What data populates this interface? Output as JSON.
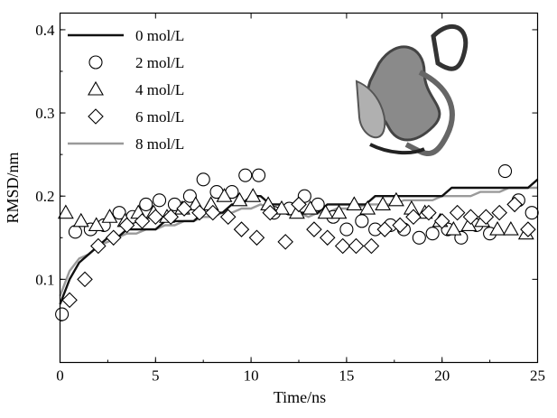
{
  "chart_data": {
    "type": "line",
    "xlabel": "Time/ns",
    "ylabel": "RMSD/nm",
    "xlim": [
      0,
      25
    ],
    "ylim": [
      0.0,
      0.42
    ],
    "x_ticks": [
      0,
      5,
      10,
      15,
      20,
      25
    ],
    "y_ticks": [
      0.1,
      0.2,
      0.3,
      0.4
    ],
    "x_tick_labels": [
      "0",
      "5",
      "10",
      "15",
      "20",
      "25"
    ],
    "y_tick_labels": [
      "0.1",
      "0.2",
      "0.3",
      "0.4"
    ],
    "grid": false,
    "legend_position": "top-left",
    "series": [
      {
        "name": "0 mol/L",
        "style": "line",
        "color": "#111111",
        "x": [
          0,
          0.5,
          1,
          1.5,
          2,
          2.5,
          3,
          3.5,
          4,
          4.5,
          5,
          5.5,
          6,
          6.5,
          7,
          7.5,
          8,
          8.5,
          9,
          9.5,
          10,
          10.5,
          11,
          11.5,
          12,
          12.5,
          13,
          13.5,
          14,
          14.5,
          15,
          15.5,
          16,
          16.5,
          17,
          17.5,
          18,
          18.5,
          19,
          19.5,
          20,
          20.5,
          21,
          21.5,
          22,
          22.5,
          23,
          23.5,
          24,
          24.5,
          25
        ],
        "y": [
          0.07,
          0.1,
          0.12,
          0.13,
          0.14,
          0.15,
          0.15,
          0.16,
          0.16,
          0.16,
          0.16,
          0.17,
          0.17,
          0.17,
          0.17,
          0.18,
          0.18,
          0.18,
          0.19,
          0.19,
          0.2,
          0.2,
          0.19,
          0.19,
          0.18,
          0.18,
          0.18,
          0.18,
          0.19,
          0.19,
          0.19,
          0.19,
          0.19,
          0.2,
          0.2,
          0.2,
          0.2,
          0.2,
          0.2,
          0.2,
          0.2,
          0.21,
          0.21,
          0.21,
          0.21,
          0.21,
          0.21,
          0.21,
          0.21,
          0.21,
          0.22
        ]
      },
      {
        "name": "2 mol/L",
        "style": "circle",
        "x": [
          0.1,
          0.8,
          1.6,
          2.3,
          3.1,
          3.8,
          4.5,
          5.2,
          6.0,
          6.8,
          7.5,
          8.2,
          9.0,
          9.7,
          10.4,
          11.2,
          12.0,
          12.8,
          13.5,
          14.3,
          15.0,
          15.8,
          16.5,
          17.3,
          18.0,
          18.8,
          19.5,
          20.3,
          21.0,
          21.8,
          22.5,
          23.3,
          24.0,
          24.7
        ],
        "y": [
          0.058,
          0.157,
          0.16,
          0.165,
          0.18,
          0.175,
          0.19,
          0.195,
          0.19,
          0.2,
          0.22,
          0.205,
          0.205,
          0.225,
          0.225,
          0.18,
          0.185,
          0.2,
          0.19,
          0.175,
          0.16,
          0.17,
          0.16,
          0.165,
          0.16,
          0.15,
          0.155,
          0.16,
          0.15,
          0.165,
          0.155,
          0.23,
          0.195,
          0.18
        ]
      },
      {
        "name": "4 mol/L",
        "style": "triangle",
        "x": [
          0.3,
          1.1,
          1.9,
          2.6,
          3.4,
          4.1,
          4.9,
          5.6,
          6.4,
          7.1,
          7.9,
          8.6,
          9.4,
          10.1,
          10.9,
          11.6,
          12.4,
          13.1,
          13.9,
          14.6,
          15.4,
          16.1,
          16.9,
          17.6,
          18.4,
          19.1,
          19.9,
          20.6,
          21.4,
          22.1,
          22.9,
          23.6,
          24.4
        ],
        "y": [
          0.18,
          0.17,
          0.165,
          0.175,
          0.17,
          0.18,
          0.18,
          0.175,
          0.185,
          0.19,
          0.19,
          0.2,
          0.195,
          0.2,
          0.19,
          0.185,
          0.18,
          0.185,
          0.18,
          0.18,
          0.19,
          0.185,
          0.19,
          0.195,
          0.185,
          0.18,
          0.17,
          0.16,
          0.165,
          0.17,
          0.16,
          0.16,
          0.155
        ]
      },
      {
        "name": "6 mol/L",
        "style": "diamond",
        "x": [
          0.5,
          1.3,
          2.0,
          2.8,
          3.5,
          4.3,
          5.0,
          5.8,
          6.5,
          7.3,
          8.0,
          8.8,
          9.5,
          10.3,
          11.0,
          11.8,
          12.5,
          13.3,
          14.0,
          14.8,
          15.5,
          16.3,
          17.0,
          17.8,
          18.5,
          19.3,
          20.0,
          20.8,
          21.5,
          22.3,
          23.0,
          23.8,
          24.5
        ],
        "y": [
          0.075,
          0.1,
          0.14,
          0.15,
          0.165,
          0.17,
          0.175,
          0.175,
          0.185,
          0.18,
          0.18,
          0.175,
          0.16,
          0.15,
          0.18,
          0.145,
          0.19,
          0.16,
          0.15,
          0.14,
          0.14,
          0.14,
          0.16,
          0.165,
          0.175,
          0.18,
          0.17,
          0.18,
          0.175,
          0.175,
          0.18,
          0.19,
          0.16
        ]
      },
      {
        "name": "8 mol/L",
        "style": "line",
        "color": "#9a9a9a",
        "x": [
          0,
          0.5,
          1,
          1.5,
          2,
          2.5,
          3,
          3.5,
          4,
          4.5,
          5,
          5.5,
          6,
          6.5,
          7,
          7.5,
          8,
          8.5,
          9,
          9.5,
          10,
          10.5,
          11,
          11.5,
          12,
          12.5,
          13,
          13.5,
          14,
          14.5,
          15,
          15.5,
          16,
          16.5,
          17,
          17.5,
          18,
          18.5,
          19,
          19.5,
          20,
          20.5,
          21,
          21.5,
          22,
          22.5,
          23,
          23.5,
          24,
          24.5,
          25
        ],
        "y": [
          0.08,
          0.11,
          0.125,
          0.13,
          0.14,
          0.145,
          0.15,
          0.155,
          0.155,
          0.16,
          0.16,
          0.165,
          0.165,
          0.17,
          0.17,
          0.175,
          0.175,
          0.18,
          0.18,
          0.185,
          0.185,
          0.19,
          0.185,
          0.185,
          0.18,
          0.18,
          0.175,
          0.18,
          0.18,
          0.185,
          0.185,
          0.185,
          0.19,
          0.19,
          0.19,
          0.19,
          0.195,
          0.195,
          0.195,
          0.195,
          0.2,
          0.2,
          0.2,
          0.2,
          0.205,
          0.205,
          0.205,
          0.21,
          0.21,
          0.21,
          0.21
        ]
      }
    ],
    "inset": "protein-ribbon-structure"
  }
}
